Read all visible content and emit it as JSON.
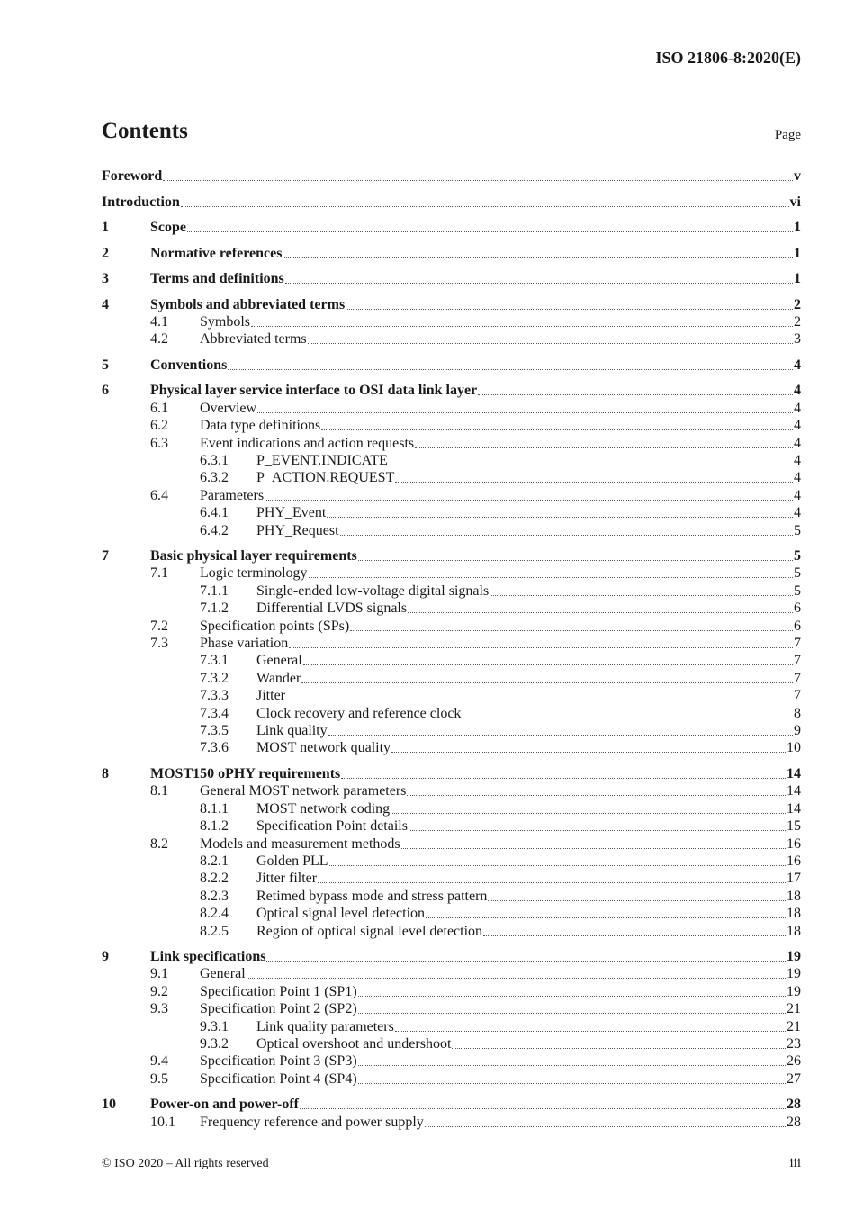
{
  "header": {
    "doc_id": "ISO 21806-8:2020(E)"
  },
  "title": "Contents",
  "page_label": "Page",
  "entries": [
    {
      "level": 0,
      "num": "",
      "title": "Foreword",
      "page": "v"
    },
    {
      "level": 0,
      "num": "",
      "title": "Introduction",
      "page": "vi"
    },
    {
      "level": 1,
      "num": "1",
      "title": "Scope",
      "page": "1"
    },
    {
      "level": 1,
      "num": "2",
      "title": "Normative references",
      "page": "1"
    },
    {
      "level": 1,
      "num": "3",
      "title": "Terms and definitions",
      "page": "1"
    },
    {
      "level": 1,
      "num": "4",
      "title": "Symbols and abbreviated terms",
      "page": "2"
    },
    {
      "level": 2,
      "num": "4.1",
      "title": "Symbols",
      "page": "2"
    },
    {
      "level": 2,
      "num": "4.2",
      "title": "Abbreviated terms",
      "page": "3"
    },
    {
      "level": 1,
      "num": "5",
      "title": "Conventions",
      "page": "4"
    },
    {
      "level": 1,
      "num": "6",
      "title": "Physical layer service interface to OSI data link layer",
      "page": "4"
    },
    {
      "level": 2,
      "num": "6.1",
      "title": "Overview",
      "page": "4"
    },
    {
      "level": 2,
      "num": "6.2",
      "title": "Data type definitions",
      "page": "4"
    },
    {
      "level": 2,
      "num": "6.3",
      "title": "Event indications and action requests",
      "page": "4"
    },
    {
      "level": 3,
      "num": "6.3.1",
      "title": "P_EVENT.INDICATE",
      "page": "4"
    },
    {
      "level": 3,
      "num": "6.3.2",
      "title": "P_ACTION.REQUEST",
      "page": "4"
    },
    {
      "level": 2,
      "num": "6.4",
      "title": "Parameters",
      "page": "4"
    },
    {
      "level": 3,
      "num": "6.4.1",
      "title": "PHY_Event",
      "page": "4"
    },
    {
      "level": 3,
      "num": "6.4.2",
      "title": "PHY_Request",
      "page": "5"
    },
    {
      "level": 1,
      "num": "7",
      "title": "Basic physical layer requirements",
      "page": "5"
    },
    {
      "level": 2,
      "num": "7.1",
      "title": "Logic terminology",
      "page": "5"
    },
    {
      "level": 3,
      "num": "7.1.1",
      "title": "Single-ended low-voltage digital signals",
      "page": "5"
    },
    {
      "level": 3,
      "num": "7.1.2",
      "title": "Differential LVDS signals",
      "page": "6"
    },
    {
      "level": 2,
      "num": "7.2",
      "title": "Specification points (SPs)",
      "page": "6"
    },
    {
      "level": 2,
      "num": "7.3",
      "title": "Phase variation",
      "page": "7"
    },
    {
      "level": 3,
      "num": "7.3.1",
      "title": "General",
      "page": "7"
    },
    {
      "level": 3,
      "num": "7.3.2",
      "title": "Wander",
      "page": "7"
    },
    {
      "level": 3,
      "num": "7.3.3",
      "title": "Jitter",
      "page": "7"
    },
    {
      "level": 3,
      "num": "7.3.4",
      "title": "Clock recovery and reference clock",
      "page": "8"
    },
    {
      "level": 3,
      "num": "7.3.5",
      "title": "Link quality",
      "page": "9"
    },
    {
      "level": 3,
      "num": "7.3.6",
      "title": "MOST network quality",
      "page": "10"
    },
    {
      "level": 1,
      "num": "8",
      "title": "MOST150 oPHY requirements",
      "page": "14"
    },
    {
      "level": 2,
      "num": "8.1",
      "title": "General MOST network parameters",
      "page": "14"
    },
    {
      "level": 3,
      "num": "8.1.1",
      "title": "MOST network coding",
      "page": "14"
    },
    {
      "level": 3,
      "num": "8.1.2",
      "title": "Specification Point details",
      "page": "15"
    },
    {
      "level": 2,
      "num": "8.2",
      "title": "Models and measurement methods",
      "page": "16"
    },
    {
      "level": 3,
      "num": "8.2.1",
      "title": "Golden PLL",
      "page": "16"
    },
    {
      "level": 3,
      "num": "8.2.2",
      "title": "Jitter filter",
      "page": "17"
    },
    {
      "level": 3,
      "num": "8.2.3",
      "title": "Retimed bypass mode and stress pattern",
      "page": "18"
    },
    {
      "level": 3,
      "num": "8.2.4",
      "title": "Optical signal level detection",
      "page": "18"
    },
    {
      "level": 3,
      "num": "8.2.5",
      "title": "Region of optical signal level detection",
      "page": "18"
    },
    {
      "level": 1,
      "num": "9",
      "title": "Link specifications",
      "page": "19"
    },
    {
      "level": 2,
      "num": "9.1",
      "title": "General",
      "page": "19"
    },
    {
      "level": 2,
      "num": "9.2",
      "title": "Specification Point 1 (SP1)",
      "page": "19"
    },
    {
      "level": 2,
      "num": "9.3",
      "title": "Specification Point 2 (SP2)",
      "page": "21"
    },
    {
      "level": 3,
      "num": "9.3.1",
      "title": "Link quality parameters",
      "page": "21"
    },
    {
      "level": 3,
      "num": "9.3.2",
      "title": "Optical overshoot and undershoot",
      "page": "23"
    },
    {
      "level": 2,
      "num": "9.4",
      "title": "Specification Point 3 (SP3)",
      "page": "26"
    },
    {
      "level": 2,
      "num": "9.5",
      "title": "Specification Point 4 (SP4)",
      "page": "27"
    },
    {
      "level": 1,
      "num": "10",
      "title": "Power-on and power-off",
      "page": "28"
    },
    {
      "level": 2,
      "num": "10.1",
      "title": "Frequency reference and power supply",
      "page": "28"
    }
  ],
  "footer": {
    "copyright": "© ISO 2020 – All rights reserved",
    "page": "iii"
  }
}
